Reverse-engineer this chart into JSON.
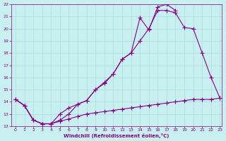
{
  "line_a_x": [
    0,
    1,
    2,
    3,
    4,
    5,
    6,
    7,
    8,
    9,
    10,
    11,
    12,
    13,
    14,
    15,
    16,
    17,
    18
  ],
  "line_a_y": [
    14.2,
    13.7,
    12.5,
    12.2,
    12.2,
    13.0,
    13.5,
    13.8,
    14.1,
    15.0,
    15.5,
    16.3,
    17.5,
    18.0,
    20.9,
    19.9,
    21.8,
    22.0,
    21.5
  ],
  "line_b_x": [
    0,
    1,
    2,
    3,
    4,
    5,
    6,
    7,
    8,
    9,
    10,
    11,
    12,
    13,
    14,
    15,
    16,
    17,
    18,
    19,
    20,
    21,
    22,
    23
  ],
  "line_b_y": [
    14.2,
    13.7,
    12.5,
    12.2,
    12.2,
    12.5,
    13.0,
    13.8,
    14.1,
    15.0,
    15.6,
    16.3,
    17.5,
    18.0,
    19.0,
    20.0,
    21.5,
    21.5,
    21.3,
    20.1,
    20.0,
    18.0,
    16.0,
    14.3
  ],
  "line_c_x": [
    0,
    1,
    2,
    3,
    4,
    5,
    6,
    7,
    8,
    9,
    10,
    11,
    12,
    13,
    14,
    15,
    16,
    17,
    18,
    19,
    20,
    21,
    22,
    23
  ],
  "line_c_y": [
    14.2,
    13.7,
    12.5,
    12.2,
    12.2,
    12.4,
    12.6,
    12.8,
    13.0,
    13.1,
    13.2,
    13.3,
    13.4,
    13.5,
    13.6,
    13.7,
    13.8,
    13.9,
    14.0,
    14.1,
    14.2,
    14.2,
    14.2,
    14.3
  ],
  "bg_color": "#c8f0f0",
  "line_color": "#880088",
  "grid_color": "#aadddd",
  "xlabel": "Windchill (Refroidissement éolien,°C)",
  "ylim": [
    12,
    22
  ],
  "xlim": [
    0,
    23
  ],
  "yticks": [
    12,
    13,
    14,
    15,
    16,
    17,
    18,
    19,
    20,
    21,
    22
  ],
  "xticks": [
    0,
    1,
    2,
    3,
    4,
    5,
    6,
    7,
    8,
    9,
    10,
    11,
    12,
    13,
    14,
    15,
    16,
    17,
    18,
    19,
    20,
    21,
    22,
    23
  ]
}
